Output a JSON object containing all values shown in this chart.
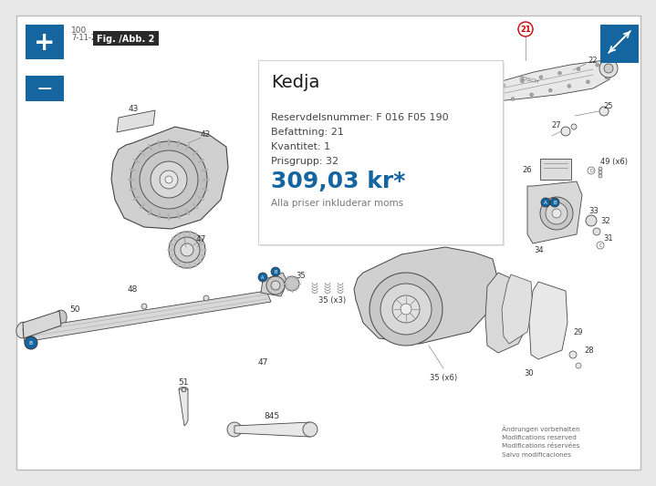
{
  "bg_color": "#e8e8e8",
  "inner_bg": "#ffffff",
  "blue_color": "#1565a0",
  "dark_blue_btn": "#1565a0",
  "title": "Kedja",
  "reservdel_label": "Reservdelsnummer: F 016 F05 190",
  "befattning_label": "Befattning: 21",
  "kvantitet_label": "Kvantitet: 1",
  "prisgrupp_label": "Prisgrupp: 32",
  "price": "309,03 kr*",
  "price_note": "Alla priser inkluderar moms",
  "fig_label": "Fig. /Abb. 2",
  "fig_100": "100",
  "fig_date": "7-11-22",
  "changes_text": "Ändrungen vorbehalten\nModifications reserved\nModifications réservées\nSalvo modificaciones",
  "highlight_label": "21",
  "highlight_color": "#cc0000",
  "line_color": "#444444",
  "part_label_color": "#333333",
  "popup_border": "#d0d0d0"
}
